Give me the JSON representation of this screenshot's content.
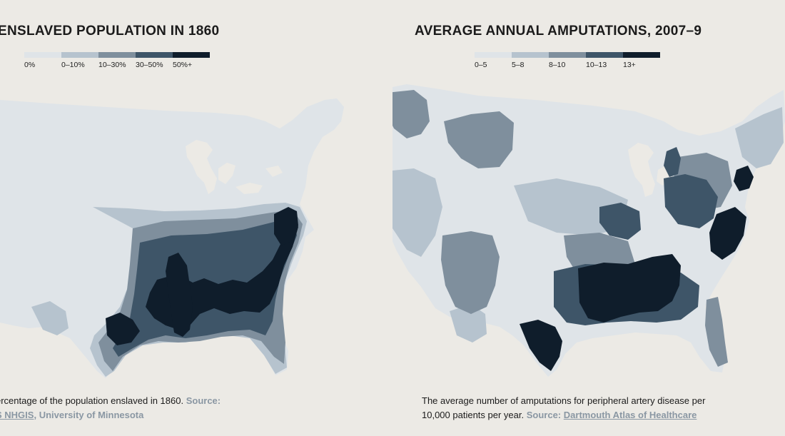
{
  "left": {
    "title": "ENSLAVED POPULATION IN 1860",
    "legend": [
      {
        "label": "0%",
        "color": "#dfe4e8"
      },
      {
        "label": "0–10%",
        "color": "#b6c3ce"
      },
      {
        "label": "10–30%",
        "color": "#7f8f9d"
      },
      {
        "label": "30–50%",
        "color": "#3e5568"
      },
      {
        "label": "50%+",
        "color": "#0f1d2b"
      }
    ],
    "caption_text": "ercentage of the population enslaved in 1860.",
    "source_label": "Source:",
    "source_link1": "S NHGIS",
    "source_sep": ",",
    "source_link2": "University of Minnesota"
  },
  "right": {
    "title": "AVERAGE ANNUAL AMPUTATIONS, 2007–9",
    "legend": [
      {
        "label": "0–5",
        "color": "#dfe4e8"
      },
      {
        "label": "5–8",
        "color": "#b6c3ce"
      },
      {
        "label": "8–10",
        "color": "#7f8f9d"
      },
      {
        "label": "10–13",
        "color": "#3e5568"
      },
      {
        "label": "13+",
        "color": "#0f1d2b"
      }
    ],
    "caption_text": "The average number of amputations for peripheral artery disease per 10,000 patients per year.",
    "source_label": "Source:",
    "source_link": "Dartmouth Atlas of Healthcare"
  },
  "colors": {
    "background": "#eceae5",
    "base_land": "#dfe4e8",
    "source_text": "#8a97a3"
  }
}
